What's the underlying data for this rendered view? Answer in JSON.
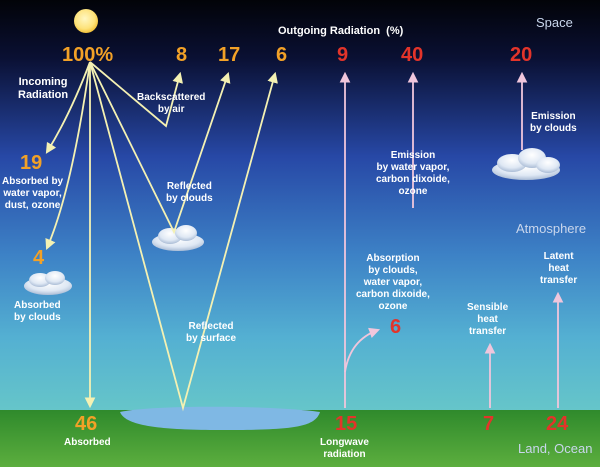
{
  "title": "Outgoing Radiation  (%)",
  "zones": {
    "space": "Space",
    "atmosphere": "Atmosphere",
    "land": "Land, Ocean"
  },
  "incoming": {
    "value": "100%",
    "label": "Incoming\nRadiation"
  },
  "absorbed_vapor": {
    "value": "19",
    "label": "Absorbed by\nwater vapor,\ndust, ozone"
  },
  "absorbed_clouds": {
    "value": "4",
    "label": "Absorbed\nby clouds"
  },
  "absorbed_surface": {
    "value": "46",
    "label": "Absorbed"
  },
  "backscattered": {
    "value": "8",
    "label": "Backscattered\nby air"
  },
  "reflected_clouds": {
    "value": "17",
    "label": "Reflected\nby clouds"
  },
  "reflected_surface": {
    "value": "6",
    "label": "Reflected\nby surface"
  },
  "outgoing_surface": {
    "value": "9"
  },
  "emission_vapor": {
    "value": "40",
    "label": "Emission\nby water vapor,\ncarbon dixoide,\nozone"
  },
  "emission_clouds": {
    "value": "20",
    "label": "Emission\nby clouds"
  },
  "absorption": {
    "value": "6",
    "label": "Absorption\nby clouds,\nwater vapor,\ncarbon dixoide,\nozone"
  },
  "longwave": {
    "value": "15",
    "label": "Longwave\nradiation"
  },
  "sensible": {
    "value": "7",
    "label": "Sensible\nheat\ntransfer"
  },
  "latent": {
    "value": "24",
    "label": "Latent\nheat\ntransfer"
  },
  "colors": {
    "shortwave": "#f2a127",
    "longwave": "#e3342a",
    "arrow_shortwave": "#f4f1b3",
    "arrow_longwave": "#f0c6dc",
    "sun": "#fde27a",
    "ground": "#3f9a34",
    "water": "#7fb8e4"
  }
}
